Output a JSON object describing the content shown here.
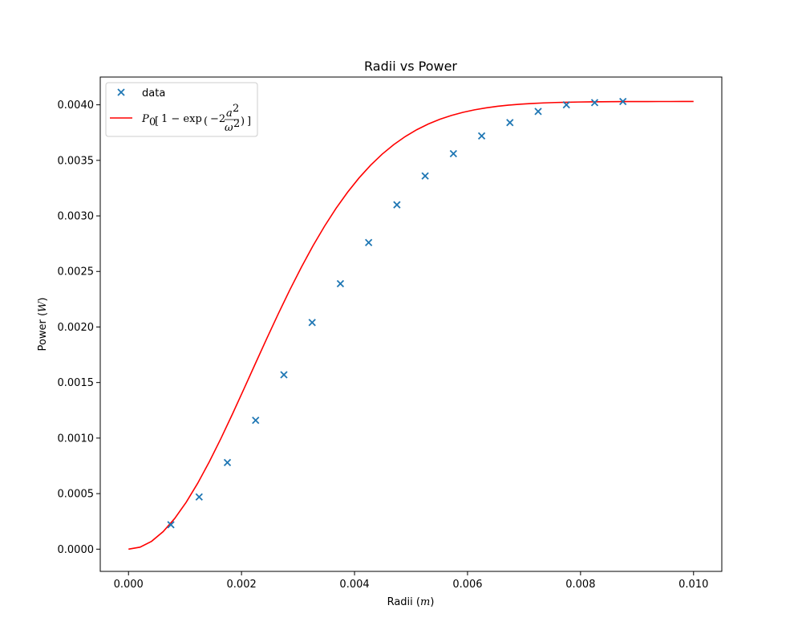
{
  "chart_data": {
    "type": "scatter",
    "title": "Radii vs Power",
    "xlabel": "Radii",
    "xlabel_unit": "m",
    "ylabel": "Power",
    "ylabel_unit": "W",
    "xlim": [
      -0.0005,
      0.0105
    ],
    "ylim": [
      -0.0002,
      0.00425
    ],
    "xticks": [
      0.0,
      0.002,
      0.004,
      0.006,
      0.008,
      0.01
    ],
    "xtick_labels": [
      "0.000",
      "0.002",
      "0.004",
      "0.006",
      "0.008",
      "0.010"
    ],
    "yticks": [
      0.0,
      0.0005,
      0.001,
      0.0015,
      0.002,
      0.0025,
      0.003,
      0.0035,
      0.004
    ],
    "ytick_labels": [
      "0.0000",
      "0.0005",
      "0.0010",
      "0.0015",
      "0.0020",
      "0.0025",
      "0.0030",
      "0.0035",
      "0.0040"
    ],
    "grid": false,
    "legend_position": "top-left",
    "series": [
      {
        "name": "data",
        "kind": "scatter",
        "marker": "x",
        "color": "#1f77b4",
        "x": [
          0.00075,
          0.00125,
          0.00175,
          0.00225,
          0.00275,
          0.00325,
          0.00375,
          0.00425,
          0.00475,
          0.00525,
          0.00575,
          0.00625,
          0.00675,
          0.00725,
          0.00775,
          0.00825,
          0.00875
        ],
        "y": [
          0.00022,
          0.00047,
          0.00078,
          0.00116,
          0.00157,
          0.00204,
          0.00239,
          0.00276,
          0.0031,
          0.00336,
          0.00356,
          0.00372,
          0.00384,
          0.00394,
          0.004,
          0.00402,
          0.00403
        ]
      },
      {
        "name": "P0[1 - exp(-2 a^2 / ω^2)]",
        "kind": "line",
        "color": "#ff0000",
        "function": "P0*(1-exp(-2*a^2/w^2))",
        "P0": 0.00403,
        "omega": 0.00434,
        "x_range": [
          0.0,
          0.01
        ],
        "samples": 50
      }
    ]
  }
}
